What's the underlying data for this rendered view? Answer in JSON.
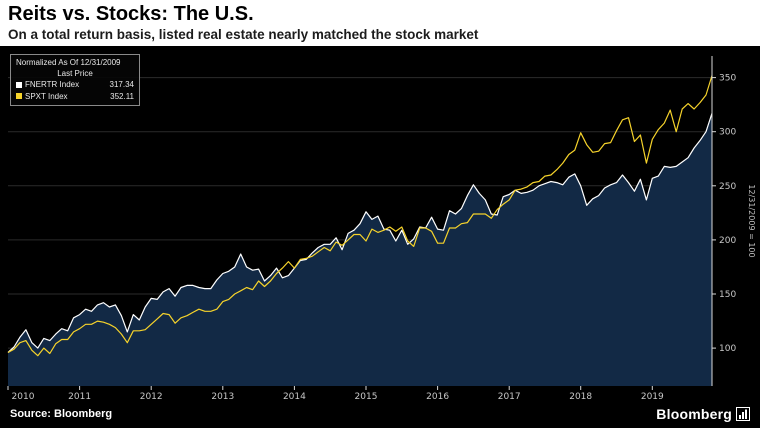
{
  "header": {
    "title": "Reits vs. Stocks: The U.S.",
    "subtitle": "On a total return basis, listed real estate nearly matched the stock market"
  },
  "footer": {
    "source": "Source: Bloomberg",
    "logo": "Bloomberg"
  },
  "chart_data": {
    "type": "line",
    "title": "Reits vs. Stocks: The U.S.",
    "subtitle": "On a total return basis, listed real estate nearly matched the stock market",
    "legend": {
      "header": "Normalized As Of 12/31/2009",
      "subheader": "Last Price"
    },
    "legend_position": "top-left",
    "right_axis_note": "12/31/2009 = 100",
    "x_frequency": "monthly",
    "x_range": "Jan 2010 - Nov 2019",
    "x_years": [
      2010,
      2011,
      2012,
      2013,
      2014,
      2015,
      2016,
      2017,
      2018,
      2019
    ],
    "y_ticks": [
      100,
      150,
      200,
      250,
      300,
      350
    ],
    "y_domain": [
      65,
      370
    ],
    "grid": true,
    "colors": {
      "background": "#000000",
      "area_fill": "#122945",
      "grid": "#2b2b2b",
      "axis": "#d9d9d9",
      "tick_label": "#c8c8c8"
    },
    "series": [
      {
        "name": "FNERTR Index",
        "last_price": 317.34,
        "color": "#ffffff",
        "values": [
          96,
          101,
          110,
          117,
          105,
          100,
          109,
          107,
          113,
          118,
          116,
          128,
          131,
          136,
          134,
          140,
          142,
          138,
          140,
          130,
          115,
          131,
          126,
          138,
          146,
          145,
          152,
          155,
          148,
          156,
          158,
          158,
          156,
          155,
          155,
          163,
          169,
          171,
          175,
          187,
          175,
          172,
          173,
          162,
          167,
          174,
          165,
          167,
          174,
          181,
          182,
          188,
          193,
          196,
          196,
          202,
          191,
          206,
          209,
          215,
          226,
          219,
          222,
          210,
          209,
          199,
          209,
          196,
          201,
          212,
          211,
          221,
          210,
          209,
          227,
          224,
          229,
          241,
          251,
          243,
          237,
          224,
          223,
          240,
          242,
          246,
          243,
          244,
          246,
          250,
          252,
          254,
          253,
          251,
          258,
          261,
          250,
          232,
          238,
          241,
          248,
          251,
          253,
          260,
          253,
          245,
          256,
          237,
          257,
          259,
          268,
          267,
          268,
          272,
          276,
          285,
          292,
          300,
          317
        ]
      },
      {
        "name": "SPXT Index",
        "last_price": 352.11,
        "color": "#f6d32b",
        "values": [
          96,
          99,
          105,
          107,
          98,
          93,
          100,
          95,
          104,
          108,
          108,
          115,
          118,
          122,
          122,
          125,
          124,
          122,
          119,
          113,
          105,
          116,
          116,
          117,
          122,
          127,
          132,
          131,
          123,
          128,
          130,
          133,
          136,
          134,
          134,
          136,
          143,
          145,
          150,
          153,
          156,
          154,
          162,
          157,
          162,
          169,
          174,
          180,
          174,
          182,
          183,
          185,
          189,
          193,
          190,
          198,
          195,
          200,
          205,
          205,
          199,
          210,
          207,
          209,
          212,
          208,
          212,
          199,
          194,
          211,
          211,
          208,
          197,
          197,
          211,
          211,
          215,
          216,
          224,
          224,
          224,
          220,
          228,
          233,
          237,
          246,
          247,
          249,
          253,
          254,
          259,
          260,
          265,
          271,
          279,
          283,
          299,
          288,
          281,
          282,
          289,
          290,
          301,
          311,
          313,
          291,
          297,
          271,
          293,
          302,
          308,
          320,
          300,
          321,
          326,
          321,
          327,
          334,
          352
        ]
      }
    ]
  }
}
